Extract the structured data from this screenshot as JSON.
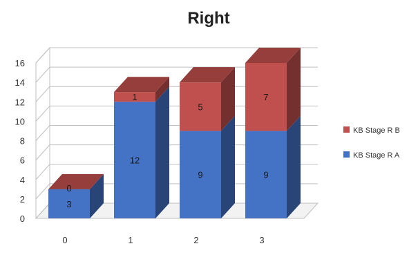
{
  "chart_data": {
    "type": "bar",
    "stacked": true,
    "three_d": true,
    "title": "Right",
    "categories": [
      "0",
      "1",
      "2",
      "3"
    ],
    "series": [
      {
        "name": "KB Stage  R A",
        "values": [
          3,
          12,
          9,
          9
        ],
        "color": "#4472C4"
      },
      {
        "name": "KB Stage  R B",
        "values": [
          0,
          1,
          5,
          7
        ],
        "color": "#C0504D"
      }
    ],
    "y_ticks": [
      "0",
      "2",
      "4",
      "6",
      "8",
      "10",
      "12",
      "14",
      "16"
    ],
    "ylim": [
      0,
      16
    ],
    "grid": true,
    "legend_position": "right"
  }
}
